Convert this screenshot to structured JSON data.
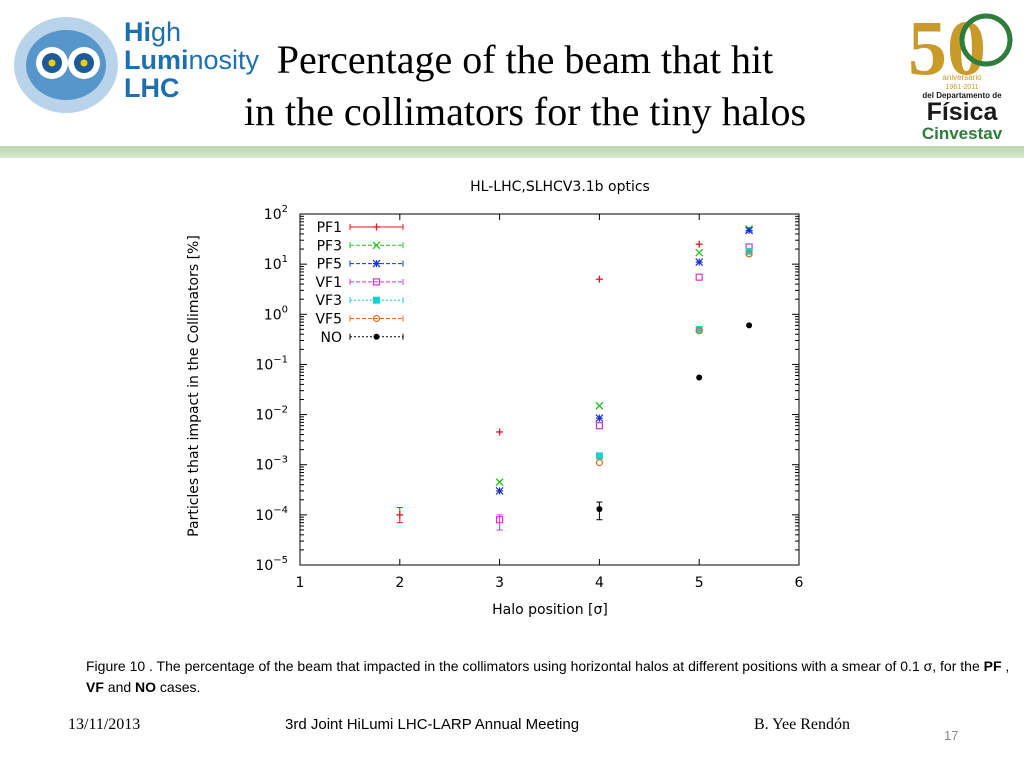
{
  "header": {
    "title_line1": "Percentage of the beam that hit",
    "title_line2": "in the collimators for the tiny halos",
    "logo_left": {
      "line1_bold": "Hi",
      "line1_light": "gh",
      "line2_bold": "Lumi",
      "line2_light": "nosity",
      "line3": "LHC"
    },
    "logo_right": {
      "number": "50",
      "line1": "aniversario",
      "line2": "1961-2011",
      "line3": "del Departamento de",
      "line4": "Física",
      "line5": "Cinvestav"
    }
  },
  "chart_data": {
    "type": "scatter",
    "title": "HL-LHC,SLHCV3.1b optics",
    "xlabel": "Halo position [σ]",
    "ylabel": "Particles that impact in the Collimators [%]",
    "xlim": [
      1,
      6
    ],
    "ylim_exp": [
      -5,
      2
    ],
    "yscale": "log",
    "x_ticks": [
      1,
      2,
      3,
      4,
      5,
      6
    ],
    "y_ticks_exp": [
      -5,
      -4,
      -3,
      -2,
      -1,
      0,
      1,
      2
    ],
    "legend_position": "top-left",
    "series": [
      {
        "name": "PF1",
        "color": "#e8141c",
        "marker": "plus",
        "line": "solid",
        "points": [
          {
            "x": 2.0,
            "y": 0.0001,
            "err": [
              7e-05,
              0.00014
            ]
          },
          {
            "x": 3.0,
            "y": 0.0045
          },
          {
            "x": 4.0,
            "y": 5.0
          },
          {
            "x": 5.0,
            "y": 25
          }
        ]
      },
      {
        "name": "PF3",
        "color": "#22c222",
        "marker": "x",
        "line": "dashed",
        "points": [
          {
            "x": 3.0,
            "y": 0.00045
          },
          {
            "x": 4.0,
            "y": 0.015
          },
          {
            "x": 5.0,
            "y": 17
          },
          {
            "x": 5.5,
            "y": 50
          }
        ]
      },
      {
        "name": "PF5",
        "color": "#1a2fd8",
        "marker": "star",
        "line": "dashed",
        "points": [
          {
            "x": 3.0,
            "y": 0.0003
          },
          {
            "x": 4.0,
            "y": 0.0085
          },
          {
            "x": 5.0,
            "y": 11
          },
          {
            "x": 5.5,
            "y": 47
          }
        ]
      },
      {
        "name": "VF1",
        "color": "#d233d2",
        "marker": "square-open",
        "line": "dashed",
        "points": [
          {
            "x": 3.0,
            "y": 8e-05,
            "err": [
              5e-05,
              0.0001
            ]
          },
          {
            "x": 4.0,
            "y": 0.006
          },
          {
            "x": 5.0,
            "y": 5.5
          },
          {
            "x": 5.5,
            "y": 22
          }
        ]
      },
      {
        "name": "VF3",
        "color": "#19d0d0",
        "marker": "square-filled",
        "line": "dotted",
        "points": [
          {
            "x": 4.0,
            "y": 0.0015
          },
          {
            "x": 5.0,
            "y": 0.5
          },
          {
            "x": 5.5,
            "y": 18
          }
        ]
      },
      {
        "name": "VF5",
        "color": "#e06a1c",
        "marker": "circle-open",
        "line": "dashed",
        "points": [
          {
            "x": 4.0,
            "y": 0.0011
          },
          {
            "x": 5.0,
            "y": 0.47
          },
          {
            "x": 5.5,
            "y": 16
          }
        ]
      },
      {
        "name": "NO",
        "color": "#000000",
        "marker": "circle-filled",
        "line": "dotted",
        "points": [
          {
            "x": 4.0,
            "y": 0.00013,
            "err": [
              8e-05,
              0.00018
            ]
          },
          {
            "x": 5.0,
            "y": 0.055
          },
          {
            "x": 5.5,
            "y": 0.6
          }
        ]
      }
    ]
  },
  "caption": {
    "prefix": "Figure 10 .  The percentage of the beam that impacted in the collimators using horizontal halos at different positions with a smear of  0.1 σ, for the ",
    "pf": "PF",
    "sep1": " , ",
    "vf": "VF",
    "sep2": "  and ",
    "no": "NO",
    "suffix": " cases."
  },
  "footer": {
    "date": "13/11/2013",
    "meeting": "3rd Joint HiLumi LHC-LARP Annual Meeting",
    "author": "B. Yee Rendón",
    "page": "17"
  }
}
